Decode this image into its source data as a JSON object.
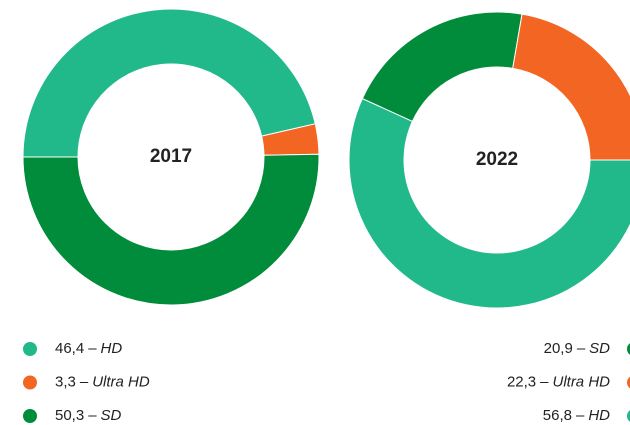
{
  "chart_data": [
    {
      "type": "donut",
      "title": "2017",
      "categories": [
        "HD",
        "Ultra HD",
        "SD"
      ],
      "values": [
        46.4,
        3.3,
        50.3
      ],
      "value_labels": [
        "46,4",
        "3,3",
        "50,3"
      ],
      "colors": [
        "#22b98a",
        "#f26522",
        "#008c3a"
      ],
      "separator": "–"
    },
    {
      "type": "donut",
      "title": "2022",
      "categories": [
        "SD",
        "Ultra HD",
        "HD"
      ],
      "values": [
        20.9,
        22.3,
        56.8
      ],
      "value_labels": [
        "20,9",
        "22,3",
        "56,8"
      ],
      "colors": [
        "#008c3a",
        "#f26522",
        "#22b98a"
      ],
      "separator": "–"
    }
  ]
}
